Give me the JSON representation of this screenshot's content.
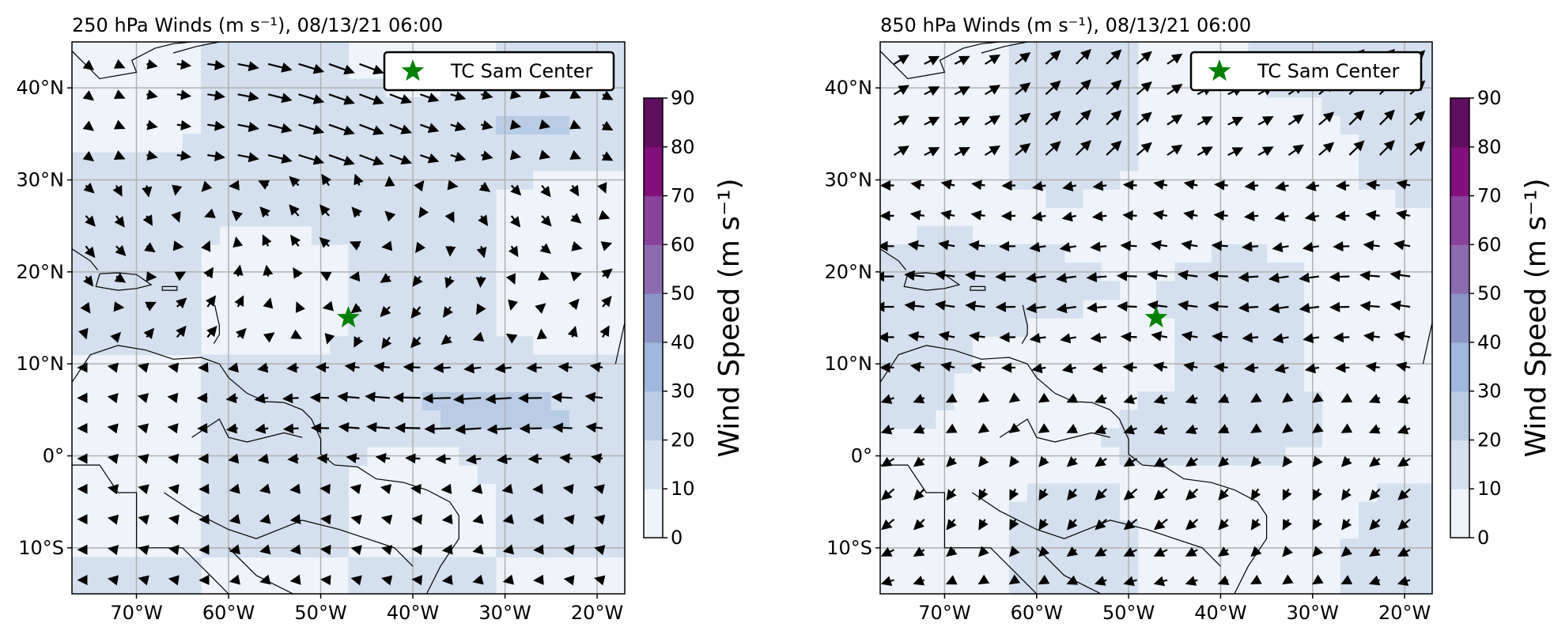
{
  "panels": [
    {
      "title": "250 hPa Winds (m s⁻¹), 08/13/21 06:00",
      "level": "250",
      "legend_label": "TC Sam Center",
      "colorbar_label": "Wind Speed (m s⁻¹)"
    },
    {
      "title": "850 hPa Winds (m s⁻¹), 08/13/21 06:00",
      "level": "850",
      "legend_label": "TC Sam Center",
      "colorbar_label": "Wind Speed (m s⁻¹)"
    }
  ],
  "map": {
    "lon_range": [
      -77,
      -17
    ],
    "lat_range": [
      -15,
      45
    ],
    "lon_ticks": [
      -70,
      -60,
      -50,
      -40,
      -30,
      -20
    ],
    "lon_tick_labels": [
      "70°W",
      "60°W",
      "50°W",
      "40°W",
      "30°W",
      "20°W"
    ],
    "lat_ticks": [
      40,
      30,
      20,
      10,
      0,
      -10
    ],
    "lat_tick_labels": [
      "40°N",
      "30°N",
      "20°N",
      "10°N",
      "0°",
      "10°S"
    ],
    "tc_center": {
      "lon": -47,
      "lat": 15,
      "color": "#008000"
    }
  },
  "colorbar": {
    "ticks": [
      0,
      10,
      20,
      30,
      40,
      50,
      60,
      70,
      80,
      90
    ],
    "tick_labels": [
      "0",
      "10",
      "20",
      "30",
      "40",
      "50",
      "60",
      "70",
      "80",
      "90"
    ],
    "colors": [
      "#eef4f9",
      "#d4e0ef",
      "#b8cce4",
      "#9fb8db",
      "#8c96c6",
      "#8c6bb1",
      "#88419d",
      "#810f7c",
      "#5f0d5e"
    ]
  }
}
